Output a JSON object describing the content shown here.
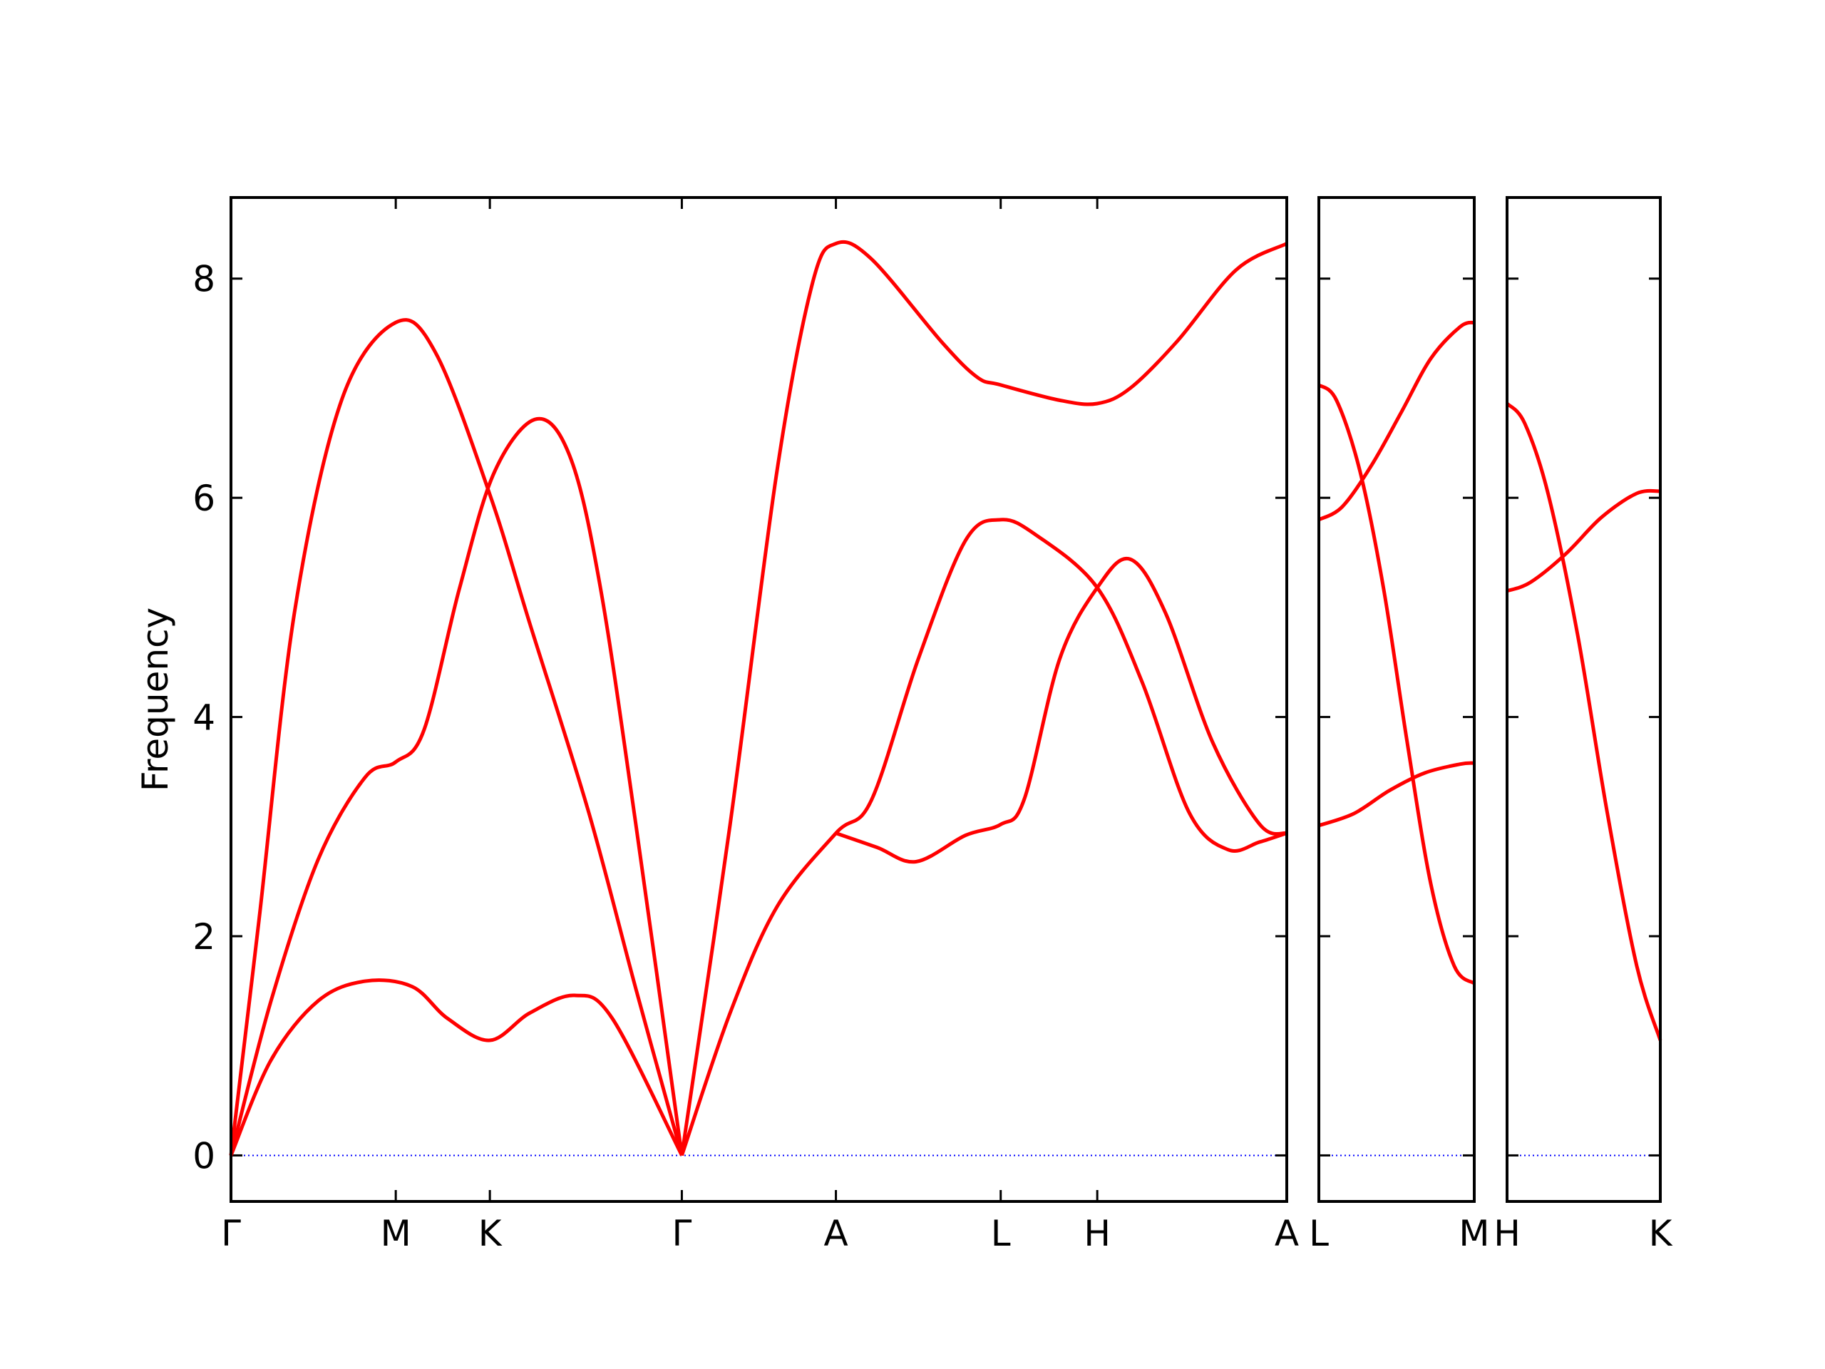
{
  "chart_data": [
    {
      "type": "line",
      "ylabel": "Frequency",
      "ylim": [
        -0.42,
        8.74
      ],
      "yticks": [
        0,
        2,
        4,
        6,
        8
      ],
      "show_ytick_labels": true,
      "xlim": [
        0,
        6.407
      ],
      "xticks": [
        {
          "value": 0,
          "label": "Γ"
        },
        {
          "value": 1.0,
          "label": "M"
        },
        {
          "value": 1.571,
          "label": "K"
        },
        {
          "value": 2.736,
          "label": "Γ"
        },
        {
          "value": 3.671,
          "label": "A"
        },
        {
          "value": 4.671,
          "label": "L"
        },
        {
          "value": 5.257,
          "label": "H"
        },
        {
          "value": 6.407,
          "label": "A"
        }
      ],
      "zero_line": true,
      "zero_line_color": "#0000ff",
      "series": [
        {
          "color": "#ff0000",
          "x": [
            0,
            0.171,
            0.386,
            0.671,
            1.0,
            1.243,
            1.571,
            1.814,
            2.171,
            2.457,
            2.736
          ],
          "values": [
            0,
            2.16,
            4.96,
            6.89,
            7.6,
            7.32,
            6.03,
            4.85,
            3.13,
            1.52,
            0
          ]
        },
        {
          "color": "#ff0000",
          "x": [
            0,
            0.243,
            0.529,
            0.814,
            1.0,
            1.171,
            1.386,
            1.6,
            1.857,
            2.064,
            2.243,
            2.457,
            2.736
          ],
          "values": [
            0,
            1.41,
            2.7,
            3.45,
            3.59,
            3.88,
            5.17,
            6.24,
            6.72,
            6.35,
            5.17,
            3.02,
            0
          ]
        },
        {
          "color": "#ff0000",
          "x": [
            0,
            0.243,
            0.529,
            0.814,
            1.1,
            1.314,
            1.571,
            1.814,
            2.086,
            2.314,
            2.736
          ],
          "values": [
            0,
            0.87,
            1.41,
            1.59,
            1.54,
            1.25,
            1.05,
            1.3,
            1.46,
            1.25,
            0
          ]
        },
        {
          "color": "#ff0000",
          "x": [
            2.736,
            3.029,
            3.314,
            3.529,
            3.671,
            3.886,
            4.314,
            4.529,
            4.671,
            5.029,
            5.257,
            5.457,
            5.743,
            6.1,
            6.407
          ],
          "values": [
            0,
            3.02,
            6.25,
            7.96,
            8.32,
            8.18,
            7.42,
            7.1,
            7.03,
            6.89,
            6.86,
            7.0,
            7.43,
            8.08,
            8.32
          ]
        },
        {
          "color": "#ff0000",
          "x": [
            2.736,
            3.029,
            3.314,
            3.671,
            3.886,
            4.171,
            4.457,
            4.671,
            4.886,
            5.257,
            5.529,
            5.814,
            6.05,
            6.243,
            6.407
          ],
          "values": [
            0,
            1.3,
            2.27,
            2.94,
            3.24,
            4.53,
            5.61,
            5.8,
            5.66,
            5.18,
            4.32,
            3.13,
            2.79,
            2.86,
            2.94
          ]
        },
        {
          "color": "#ff0000",
          "x": [
            3.671,
            3.921,
            4.157,
            4.457,
            4.671,
            4.814,
            5.029,
            5.257,
            5.457,
            5.671,
            5.957,
            6.243,
            6.407
          ],
          "values": [
            2.94,
            2.81,
            2.68,
            2.92,
            3.02,
            3.25,
            4.53,
            5.18,
            5.44,
            4.95,
            3.77,
            3.02,
            2.94
          ]
        }
      ]
    },
    {
      "type": "line",
      "ylim": [
        -0.42,
        8.74
      ],
      "yticks": [
        0,
        2,
        4,
        6,
        8
      ],
      "show_ytick_labels": false,
      "xlim": [
        0,
        0.943
      ],
      "xticks": [
        {
          "value": 0,
          "label": "L"
        },
        {
          "value": 0.943,
          "label": "M"
        }
      ],
      "zero_line": true,
      "zero_line_color": "#0000ff",
      "series": [
        {
          "color": "#ff0000",
          "x": [
            0,
            0.107,
            0.25,
            0.393,
            0.536,
            0.679,
            0.821,
            0.943
          ],
          "values": [
            7.03,
            6.89,
            6.24,
            5.17,
            3.77,
            2.48,
            1.73,
            1.57
          ]
        },
        {
          "color": "#ff0000",
          "x": [
            0,
            0.143,
            0.321,
            0.5,
            0.679,
            0.857,
            0.943
          ],
          "values": [
            5.8,
            5.92,
            6.3,
            6.78,
            7.27,
            7.56,
            7.6
          ]
        },
        {
          "color": "#ff0000",
          "x": [
            0,
            0.214,
            0.429,
            0.643,
            0.857,
            0.943
          ],
          "values": [
            3.01,
            3.12,
            3.33,
            3.49,
            3.57,
            3.58
          ]
        }
      ]
    },
    {
      "type": "line",
      "ylim": [
        -0.42,
        8.74
      ],
      "yticks": [
        0,
        2,
        4,
        6,
        8
      ],
      "show_ytick_labels": false,
      "xlim": [
        0,
        0.929
      ],
      "xticks": [
        {
          "value": 0,
          "label": "H"
        },
        {
          "value": 0.929,
          "label": "K"
        }
      ],
      "zero_line": true,
      "zero_line_color": "#0000ff",
      "series": [
        {
          "color": "#ff0000",
          "x": [
            0,
            0.107,
            0.25,
            0.429,
            0.607,
            0.786,
            0.929
          ],
          "values": [
            6.86,
            6.68,
            6.03,
            4.74,
            3.13,
            1.73,
            1.05
          ]
        },
        {
          "color": "#ff0000",
          "x": [
            0,
            0.143,
            0.357,
            0.571,
            0.786,
            0.929
          ],
          "values": [
            5.15,
            5.23,
            5.49,
            5.82,
            6.04,
            6.06
          ]
        }
      ]
    }
  ]
}
